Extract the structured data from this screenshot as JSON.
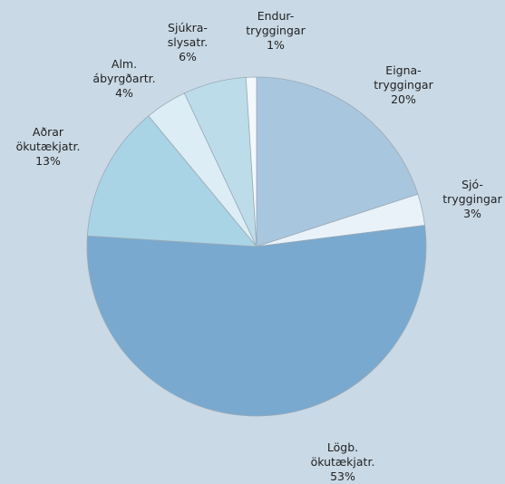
{
  "chart_data": {
    "type": "pie",
    "categories": [
      "Eigna-\ntryggingar",
      "Sjó-\ntryggingar",
      "Lögb.\nökutækjatr.",
      "Aðrar\nökutækjatr.",
      "Alm.\nábyrgðartr.",
      "Sjúkra-\nslysatr.",
      "Endur-\ntryggingar"
    ],
    "values": [
      20,
      3,
      53,
      13,
      4,
      6,
      1
    ],
    "value_labels": [
      "20%",
      "3%",
      "53%",
      "13%",
      "4%",
      "6%",
      "1%"
    ],
    "colors": [
      "#a9c6df",
      "#e9f2f8",
      "#79a9cf",
      "#a9d4e6",
      "#dcedf5",
      "#bddcea",
      "#f2f8fb"
    ]
  }
}
